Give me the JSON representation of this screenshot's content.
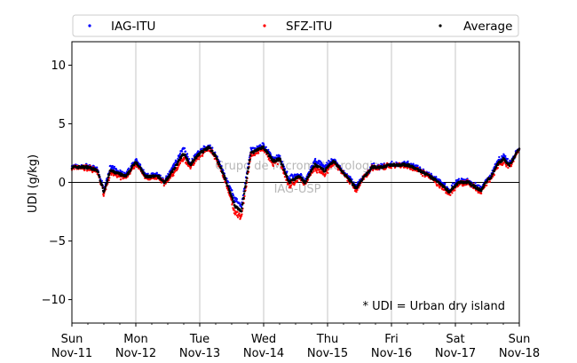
{
  "chart_data": {
    "type": "scatter",
    "ylabel": "UDI (g/kg)",
    "ylim": [
      -12,
      12
    ],
    "yticks": [
      -10,
      -5,
      0,
      5,
      10
    ],
    "xlim": [
      0,
      7
    ],
    "x_unit": "days since Sun Nov-11 00:00",
    "xticks": [
      {
        "day": "Sun",
        "date": "Nov-11"
      },
      {
        "day": "Mon",
        "date": "Nov-12"
      },
      {
        "day": "Tue",
        "date": "Nov-13"
      },
      {
        "day": "Wed",
        "date": "Nov-14"
      },
      {
        "day": "Thu",
        "date": "Nov-15"
      },
      {
        "day": "Fri",
        "date": "Nov-16"
      },
      {
        "day": "Sat",
        "date": "Nov-17"
      },
      {
        "day": "Sun",
        "date": "Nov-18"
      }
    ],
    "grid": "vertical",
    "legend_position": "top",
    "annotation": "* UDI = Urban dry island",
    "watermark": [
      "Grupo de Micrometeorologia",
      "IAG-USP"
    ],
    "series": [
      {
        "name": "IAG-ITU",
        "color": "#0000ff"
      },
      {
        "name": "SFZ-ITU",
        "color": "#ff0000"
      },
      {
        "name": "Average",
        "color": "#000000"
      }
    ],
    "x": [
      0,
      0.25,
      0.4,
      0.5,
      0.6,
      0.85,
      1.0,
      1.15,
      1.35,
      1.45,
      1.58,
      1.75,
      1.85,
      2.0,
      2.15,
      2.25,
      2.4,
      2.55,
      2.65,
      2.8,
      3.0,
      3.15,
      3.25,
      3.4,
      3.55,
      3.65,
      3.8,
      3.95,
      4.1,
      4.25,
      4.45,
      4.55,
      4.7,
      4.85,
      5.0,
      5.25,
      5.45,
      5.6,
      5.75,
      5.9,
      6.05,
      6.2,
      6.4,
      6.5,
      6.55,
      6.65,
      6.75,
      6.85,
      7.0
    ],
    "avg": [
      1.3,
      1.3,
      1.0,
      -0.8,
      1.0,
      0.5,
      1.8,
      0.5,
      0.5,
      0.0,
      1.0,
      2.5,
      1.5,
      2.5,
      3.0,
      2.2,
      0.3,
      -2.0,
      -2.5,
      2.5,
      3.0,
      1.8,
      2.0,
      0.0,
      0.5,
      0.0,
      1.5,
      1.0,
      1.8,
      0.8,
      -0.5,
      0.3,
      1.3,
      1.3,
      1.5,
      1.5,
      1.0,
      0.5,
      0.0,
      -0.8,
      0.0,
      0.0,
      -0.7,
      0.2,
      0.4,
      1.5,
      2.0,
      1.5,
      2.9
    ],
    "iag_minus_sfz": [
      0.1,
      0.1,
      0.2,
      0.3,
      0.6,
      0.2,
      0.3,
      0.2,
      0.2,
      0.1,
      0.6,
      0.9,
      0.4,
      0.3,
      0.2,
      0.2,
      0.3,
      1.2,
      1.0,
      0.4,
      0.3,
      0.5,
      0.2,
      0.7,
      0.4,
      0.2,
      0.6,
      0.8,
      0.2,
      0.1,
      0.3,
      0.1,
      0.1,
      0.1,
      0.1,
      0.2,
      0.2,
      0.1,
      0.4,
      0.3,
      0.3,
      0.1,
      0.3,
      0.2,
      0.3,
      0.4,
      0.5,
      0.3,
      0.1
    ]
  }
}
